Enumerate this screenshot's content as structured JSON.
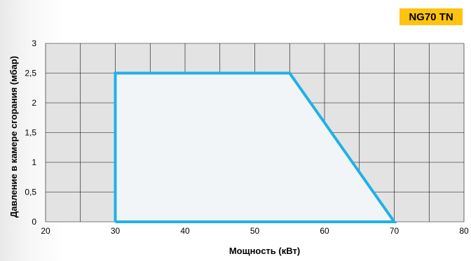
{
  "badge": "NG70 TN",
  "chart_data": {
    "type": "area",
    "xlabel": "Мощность (кВт)",
    "ylabel": "Давление в камере сгорания (мбар)",
    "xlim": [
      20,
      80
    ],
    "ylim": [
      0,
      3
    ],
    "x_ticks": [
      "20",
      "30",
      "40",
      "50",
      "60",
      "70",
      "80"
    ],
    "y_ticks": [
      "0",
      "0,5",
      "1",
      "1,5",
      "2",
      "2,5",
      "3"
    ],
    "grid": true,
    "series": [
      {
        "x": [
          30,
          30,
          55,
          70,
          30
        ],
        "y": [
          0,
          2.5,
          2.5,
          0,
          0
        ],
        "color": "#1fb1e8",
        "fill": "#f2f5f8"
      }
    ],
    "colors": {
      "plot_bg": "#e3e3e3",
      "grid": "#0b0b0b",
      "line": "#1fb1e8"
    }
  }
}
